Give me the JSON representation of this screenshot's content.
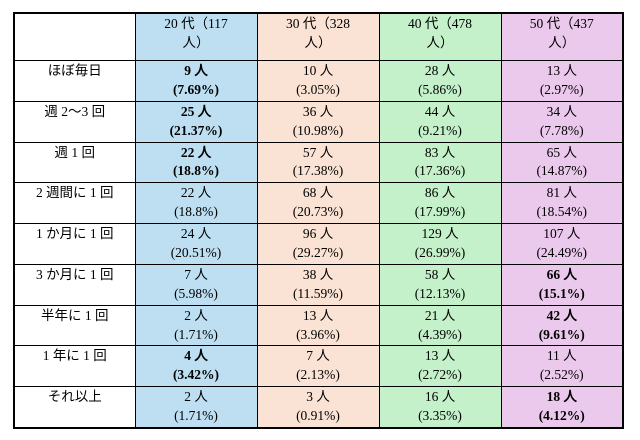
{
  "table": {
    "corner_label": "",
    "columns": [
      {
        "label": "20 代（117\n人）",
        "color": "#BDDFF1"
      },
      {
        "label": "30 代（328\n人）",
        "color": "#FAE3D4"
      },
      {
        "label": "40 代（478\n人）",
        "color": "#C4F0CA"
      },
      {
        "label": "50 代（437\n人）",
        "color": "#EBC9EC"
      }
    ],
    "rows": [
      {
        "label": "ほぼ毎日",
        "cells": [
          {
            "text": "9 人\n(7.69%)",
            "bold": true
          },
          {
            "text": "10 人\n(3.05%)",
            "bold": false
          },
          {
            "text": "28 人\n(5.86%)",
            "bold": false
          },
          {
            "text": "13 人\n(2.97%)",
            "bold": false
          }
        ]
      },
      {
        "label": "週 2～3 回",
        "cells": [
          {
            "text": "25 人\n(21.37%)",
            "bold": true
          },
          {
            "text": "36 人\n(10.98%)",
            "bold": false
          },
          {
            "text": "44 人\n(9.21%)",
            "bold": false
          },
          {
            "text": "34 人\n(7.78%)",
            "bold": false
          }
        ]
      },
      {
        "label": "週 1 回",
        "cells": [
          {
            "text": "22 人\n(18.8%)",
            "bold": true
          },
          {
            "text": "57 人\n(17.38%)",
            "bold": false
          },
          {
            "text": "83 人\n(17.36%)",
            "bold": false
          },
          {
            "text": "65 人\n(14.87%)",
            "bold": false
          }
        ]
      },
      {
        "label": "2 週間に 1 回",
        "cells": [
          {
            "text": "22 人\n(18.8%)",
            "bold": false
          },
          {
            "text": "68 人\n(20.73%)",
            "bold": false
          },
          {
            "text": "86 人\n(17.99%)",
            "bold": false
          },
          {
            "text": "81 人\n(18.54%)",
            "bold": false
          }
        ]
      },
      {
        "label": "1 か月に 1 回",
        "cells": [
          {
            "text": "24 人\n(20.51%)",
            "bold": false
          },
          {
            "text": "96 人\n(29.27%)",
            "bold": false
          },
          {
            "text": "129 人\n(26.99%)",
            "bold": false
          },
          {
            "text": "107 人\n(24.49%)",
            "bold": false
          }
        ]
      },
      {
        "label": "3 か月に 1 回",
        "cells": [
          {
            "text": "7 人\n(5.98%)",
            "bold": false
          },
          {
            "text": "38 人\n(11.59%)",
            "bold": false
          },
          {
            "text": "58 人\n(12.13%)",
            "bold": false
          },
          {
            "text": "66 人\n(15.1%)",
            "bold": true
          }
        ]
      },
      {
        "label": "半年に 1 回",
        "cells": [
          {
            "text": "2 人\n(1.71%)",
            "bold": false
          },
          {
            "text": "13 人\n(3.96%)",
            "bold": false
          },
          {
            "text": "21 人\n(4.39%)",
            "bold": false
          },
          {
            "text": "42 人\n(9.61%)",
            "bold": true
          }
        ]
      },
      {
        "label": "1 年に 1 回",
        "cells": [
          {
            "text": "4 人\n(3.42%)",
            "bold": true
          },
          {
            "text": "7 人\n(2.13%)",
            "bold": false
          },
          {
            "text": "13 人\n(2.72%)",
            "bold": false
          },
          {
            "text": "11 人\n(2.52%)",
            "bold": false
          }
        ]
      },
      {
        "label": "それ以上",
        "cells": [
          {
            "text": "2 人\n(1.71%)",
            "bold": false
          },
          {
            "text": "3 人\n(0.91%)",
            "bold": false
          },
          {
            "text": "16 人\n(3.35%)",
            "bold": false
          },
          {
            "text": "18 人\n(4.12%)",
            "bold": true
          }
        ]
      }
    ]
  },
  "chart_data": {
    "type": "table",
    "title": "",
    "columns": [
      "20代（117人）",
      "30代（328人）",
      "40代（478人）",
      "50代（437人）"
    ],
    "column_totals": [
      117,
      328,
      478,
      437
    ],
    "row_labels": [
      "ほぼ毎日",
      "週2～3回",
      "週1回",
      "2週間に1回",
      "1か月に1回",
      "3か月に1回",
      "半年に1回",
      "1年に1回",
      "それ以上"
    ],
    "counts": [
      [
        9,
        10,
        28,
        13
      ],
      [
        25,
        36,
        44,
        34
      ],
      [
        22,
        57,
        83,
        65
      ],
      [
        22,
        68,
        86,
        81
      ],
      [
        24,
        96,
        129,
        107
      ],
      [
        7,
        38,
        58,
        66
      ],
      [
        2,
        13,
        21,
        42
      ],
      [
        4,
        7,
        13,
        11
      ],
      [
        2,
        3,
        16,
        18
      ]
    ],
    "percentages": [
      [
        7.69,
        3.05,
        5.86,
        2.97
      ],
      [
        21.37,
        10.98,
        9.21,
        7.78
      ],
      [
        18.8,
        17.38,
        17.36,
        14.87
      ],
      [
        18.8,
        20.73,
        17.99,
        18.54
      ],
      [
        20.51,
        29.27,
        26.99,
        24.49
      ],
      [
        5.98,
        11.59,
        12.13,
        15.1
      ],
      [
        1.71,
        3.96,
        4.39,
        9.61
      ],
      [
        3.42,
        2.13,
        2.72,
        2.52
      ],
      [
        1.71,
        0.91,
        3.35,
        4.12
      ]
    ],
    "bold_cells": [
      {
        "row": "ほぼ毎日",
        "column": "20代（117人）"
      },
      {
        "row": "週2～3回",
        "column": "20代（117人）"
      },
      {
        "row": "週1回",
        "column": "20代（117人）"
      },
      {
        "row": "3か月に1回",
        "column": "50代（437人）"
      },
      {
        "row": "半年に1回",
        "column": "50代（437人）"
      },
      {
        "row": "1年に1回",
        "column": "20代（117人）"
      },
      {
        "row": "それ以上",
        "column": "50代（437人）"
      }
    ],
    "column_colors": [
      "#BDDFF1",
      "#FAE3D4",
      "#C4F0CA",
      "#EBC9EC"
    ]
  }
}
